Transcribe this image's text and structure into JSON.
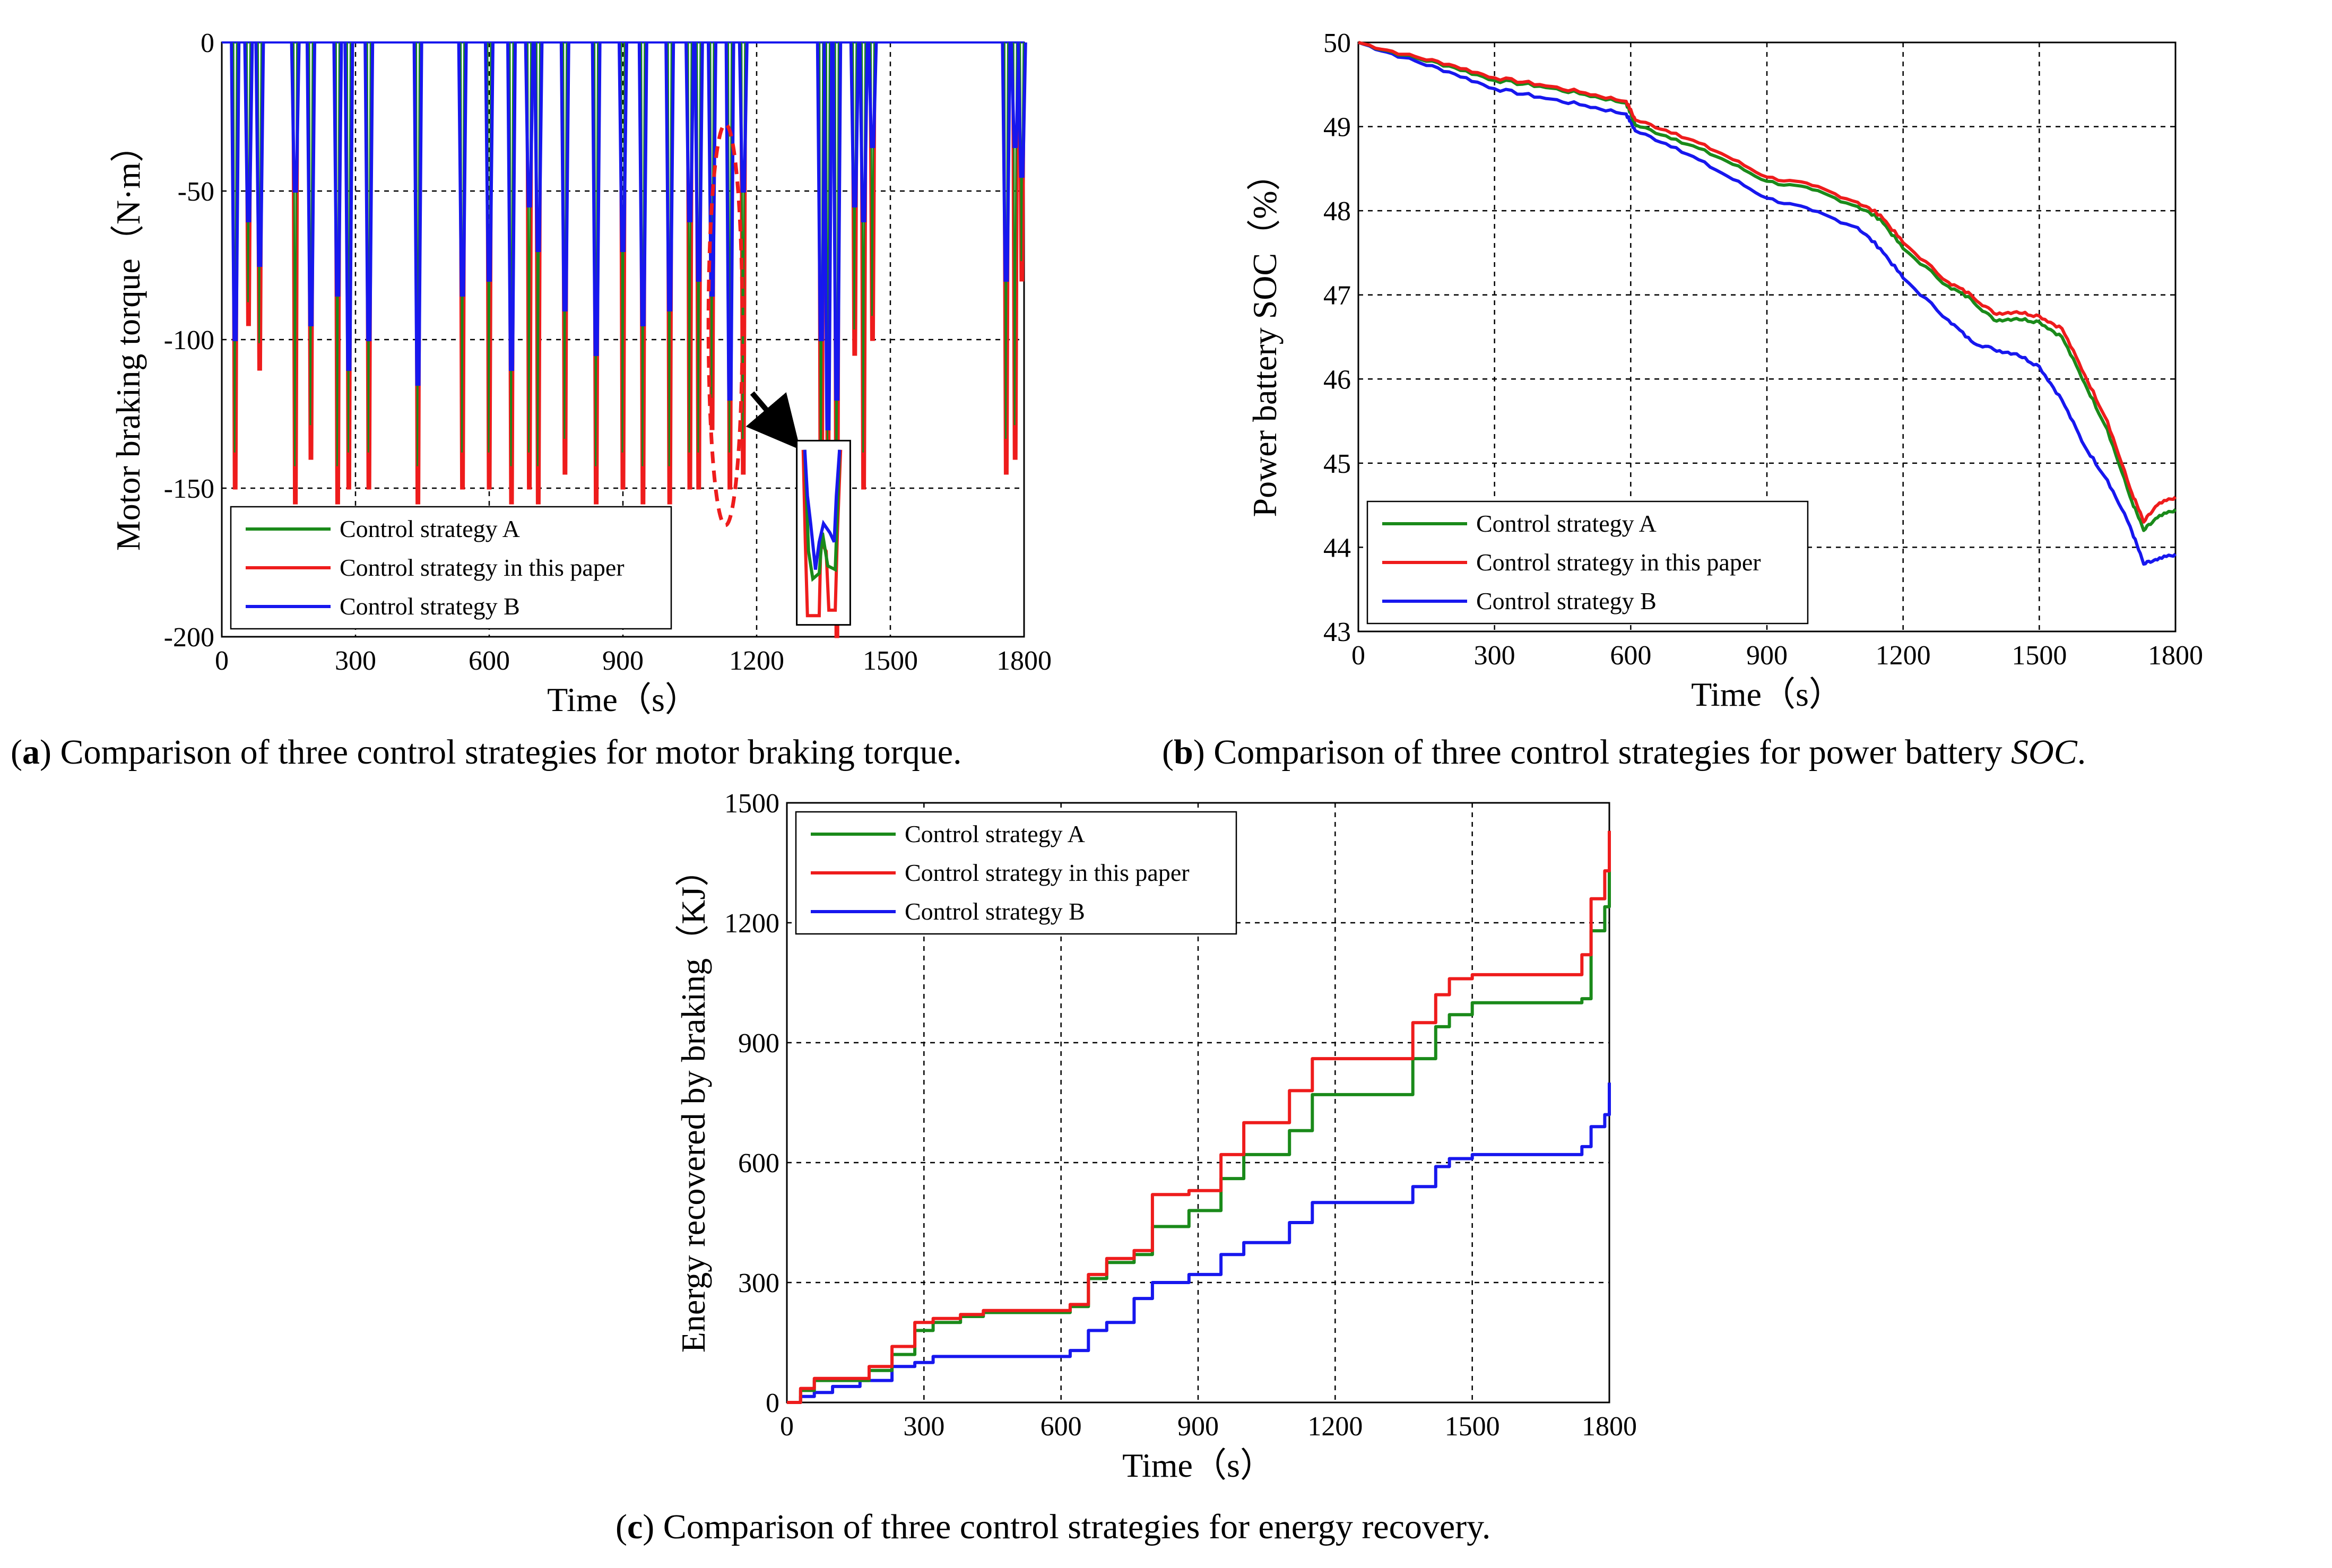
{
  "captions": {
    "a": {
      "letter": "a",
      "text": " Comparison of three control strategies for motor braking torque."
    },
    "b": {
      "letter": "b",
      "text": " Comparison of three control strategies for power battery ",
      "italic": "SOC",
      "tail": "."
    },
    "c": {
      "letter": "c",
      "text": " Comparison of three control strategies for energy recovery."
    }
  },
  "colors": {
    "A": "#1a8a1a",
    "paper": "#ee1c1c",
    "B": "#1717ee",
    "annotation": "#ee1c1c",
    "grid": "#000000"
  },
  "chart_data": [
    {
      "id": "a",
      "type": "line",
      "title": "",
      "xlabel": "Time（s）",
      "ylabel": "Motor braking torque（N·m）",
      "xlim": [
        0,
        1800
      ],
      "ylim": [
        -200,
        0
      ],
      "xticks": [
        "0",
        "300",
        "600",
        "900",
        "1200",
        "1500",
        "1800"
      ],
      "yticks": [
        "0",
        "-50",
        "-100",
        "-150",
        "-200"
      ],
      "grid": true,
      "legend_position": "bottom-left",
      "series": [
        {
          "name": "Control strategy A",
          "key": "A"
        },
        {
          "name": "Control strategy in this paper",
          "key": "paper"
        },
        {
          "name": "Control strategy B",
          "key": "B"
        }
      ],
      "braking_spikes": [
        {
          "t": 30,
          "B": -100,
          "paper": -150
        },
        {
          "t": 60,
          "B": -60,
          "paper": -95
        },
        {
          "t": 85,
          "B": -75,
          "paper": -110
        },
        {
          "t": 165,
          "B": -50,
          "paper": -155
        },
        {
          "t": 200,
          "B": -95,
          "paper": -140
        },
        {
          "t": 260,
          "B": -85,
          "paper": -155
        },
        {
          "t": 285,
          "B": -110,
          "paper": -150
        },
        {
          "t": 330,
          "B": -100,
          "paper": -150
        },
        {
          "t": 440,
          "B": -115,
          "paper": -155
        },
        {
          "t": 540,
          "B": -85,
          "paper": -150
        },
        {
          "t": 600,
          "B": -80,
          "paper": -150
        },
        {
          "t": 650,
          "B": -110,
          "paper": -155
        },
        {
          "t": 690,
          "B": -55,
          "paper": -150
        },
        {
          "t": 710,
          "B": -70,
          "paper": -155
        },
        {
          "t": 770,
          "B": -90,
          "paper": -145
        },
        {
          "t": 840,
          "B": -105,
          "paper": -155
        },
        {
          "t": 900,
          "B": -70,
          "paper": -150
        },
        {
          "t": 945,
          "B": -95,
          "paper": -155
        },
        {
          "t": 1005,
          "B": -90,
          "paper": -155
        },
        {
          "t": 1050,
          "B": -60,
          "paper": -150
        },
        {
          "t": 1070,
          "B": -80,
          "paper": -150
        },
        {
          "t": 1100,
          "B": -85,
          "paper": -130
        },
        {
          "t": 1140,
          "B": -120,
          "paper": -150
        },
        {
          "t": 1170,
          "B": -50,
          "paper": -145
        },
        {
          "t": 1345,
          "B": -100,
          "paper": -195
        },
        {
          "t": 1360,
          "B": -130,
          "paper": -150
        },
        {
          "t": 1380,
          "B": -120,
          "paper": -200
        },
        {
          "t": 1420,
          "B": -55,
          "paper": -105
        },
        {
          "t": 1440,
          "B": -60,
          "paper": -150
        },
        {
          "t": 1460,
          "B": -35,
          "paper": -100
        },
        {
          "t": 1760,
          "B": -80,
          "paper": -145
        },
        {
          "t": 1780,
          "B": -35,
          "paper": -140
        },
        {
          "t": 1795,
          "B": -45,
          "paper": -80
        }
      ]
    },
    {
      "id": "b",
      "type": "line",
      "title": "",
      "xlabel": "Time（s）",
      "ylabel": "Power battery SOC（%）",
      "xlim": [
        0,
        1800
      ],
      "ylim": [
        43,
        50
      ],
      "xticks": [
        "0",
        "300",
        "600",
        "900",
        "1200",
        "1500",
        "1800"
      ],
      "yticks": [
        "50",
        "49",
        "48",
        "47",
        "46",
        "45",
        "44",
        "43"
      ],
      "grid": true,
      "legend_position": "bottom-left",
      "x": [
        0,
        100,
        200,
        300,
        400,
        500,
        590,
        610,
        700,
        800,
        900,
        1000,
        1100,
        1150,
        1200,
        1300,
        1350,
        1400,
        1450,
        1500,
        1550,
        1600,
        1650,
        1700,
        1730,
        1760,
        1800
      ],
      "series": [
        {
          "name": "Control strategy A",
          "key": "A",
          "values": [
            50.0,
            49.85,
            49.72,
            49.55,
            49.48,
            49.38,
            49.28,
            49.02,
            48.85,
            48.62,
            48.35,
            48.25,
            48.05,
            47.9,
            47.55,
            47.1,
            46.95,
            46.7,
            46.72,
            46.68,
            46.5,
            45.95,
            45.4,
            44.6,
            44.2,
            44.35,
            44.45
          ]
        },
        {
          "name": "Control strategy in this paper",
          "key": "paper",
          "values": [
            50.0,
            49.86,
            49.74,
            49.58,
            49.5,
            49.4,
            49.3,
            49.08,
            48.92,
            48.68,
            48.4,
            48.3,
            48.1,
            47.95,
            47.62,
            47.15,
            47.0,
            46.78,
            46.8,
            46.75,
            46.6,
            46.05,
            45.5,
            44.7,
            44.3,
            44.5,
            44.6
          ]
        },
        {
          "name": "Control strategy B",
          "key": "B",
          "values": [
            50.0,
            49.82,
            49.65,
            49.45,
            49.35,
            49.25,
            49.15,
            48.95,
            48.75,
            48.45,
            48.15,
            48.0,
            47.8,
            47.55,
            47.2,
            46.7,
            46.45,
            46.35,
            46.3,
            46.15,
            45.75,
            45.2,
            44.8,
            44.25,
            43.8,
            43.85,
            43.92
          ]
        }
      ]
    },
    {
      "id": "c",
      "type": "line",
      "title": "",
      "xlabel": "Time（s）",
      "ylabel": "Energy recovered by braking（KJ）",
      "xlim": [
        0,
        1800
      ],
      "ylim": [
        0,
        1500
      ],
      "xticks": [
        "0",
        "300",
        "600",
        "900",
        "1200",
        "1500",
        "1800"
      ],
      "yticks": [
        "1500",
        "1200",
        "900",
        "600",
        "300",
        "0"
      ],
      "grid": true,
      "legend_position": "top-left",
      "series": [
        {
          "name": "Control strategy A",
          "key": "A",
          "x": [
            0,
            30,
            60,
            100,
            180,
            230,
            280,
            320,
            380,
            430,
            620,
            660,
            700,
            760,
            800,
            880,
            950,
            1000,
            1100,
            1150,
            1340,
            1370,
            1420,
            1450,
            1500,
            1740,
            1760,
            1790,
            1800
          ],
          "values": [
            0,
            30,
            55,
            55,
            80,
            120,
            180,
            200,
            215,
            225,
            240,
            310,
            350,
            370,
            440,
            480,
            560,
            620,
            680,
            770,
            770,
            860,
            940,
            970,
            1000,
            1010,
            1180,
            1240,
            1330
          ]
        },
        {
          "name": "Control strategy in this paper",
          "key": "paper",
          "x": [
            0,
            30,
            60,
            100,
            180,
            230,
            280,
            320,
            380,
            430,
            620,
            660,
            700,
            760,
            800,
            880,
            950,
            1000,
            1100,
            1150,
            1340,
            1370,
            1420,
            1450,
            1500,
            1740,
            1760,
            1790,
            1800
          ],
          "values": [
            0,
            35,
            60,
            60,
            90,
            140,
            200,
            210,
            220,
            230,
            245,
            320,
            360,
            380,
            520,
            530,
            620,
            700,
            780,
            860,
            860,
            950,
            1020,
            1060,
            1070,
            1120,
            1260,
            1330,
            1430
          ]
        },
        {
          "name": "Control strategy B",
          "key": "B",
          "x": [
            0,
            30,
            60,
            100,
            160,
            230,
            280,
            320,
            620,
            660,
            700,
            760,
            800,
            880,
            950,
            1000,
            1100,
            1150,
            1340,
            1370,
            1420,
            1450,
            1500,
            1740,
            1760,
            1790,
            1800
          ],
          "values": [
            0,
            15,
            25,
            40,
            55,
            90,
            100,
            115,
            130,
            180,
            200,
            260,
            300,
            320,
            370,
            400,
            450,
            500,
            500,
            540,
            590,
            610,
            620,
            640,
            690,
            720,
            800
          ]
        }
      ]
    }
  ]
}
